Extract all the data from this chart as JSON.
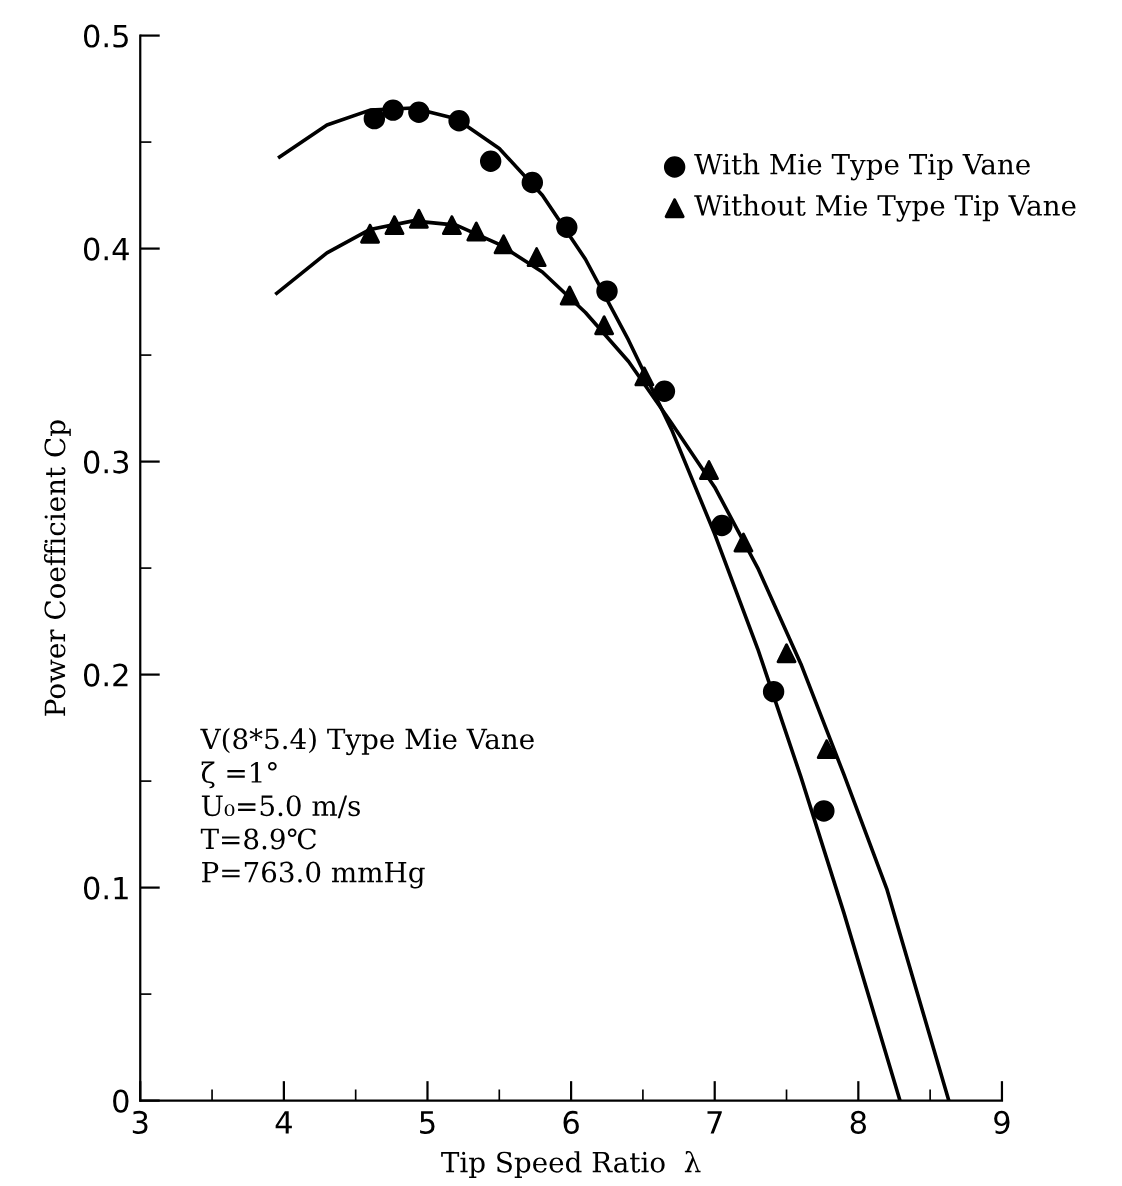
{
  "chart_data": {
    "type": "scatter",
    "xlabel": "Tip Speed Ratio  λ",
    "ylabel": "Power Coefficient Cp",
    "xlim": [
      3,
      9
    ],
    "xticks": [
      3,
      4,
      5,
      6,
      7,
      8,
      9
    ],
    "ylim": [
      0,
      0.5
    ],
    "yticks": [
      0,
      0.1,
      0.2,
      0.3,
      0.4,
      0.5
    ],
    "grid": false,
    "legend": "top right",
    "annotations": [
      "V(8*5.4) Type Mie Vane\nζ =1°\nU₀=5.0 m/s\nT=8.9℃\nP=763.0 mmHg"
    ],
    "series": [
      {
        "name": "With Mie Type Tip Vane",
        "marker": "circle",
        "color": "#000000",
        "x": [
          4.63,
          4.76,
          4.94,
          5.22,
          5.44,
          5.73,
          5.97,
          6.25,
          6.65,
          7.05,
          7.41,
          7.76
        ],
        "values": [
          0.461,
          0.465,
          0.464,
          0.46,
          0.441,
          0.431,
          0.41,
          0.38,
          0.333,
          0.27,
          0.192,
          0.136
        ]
      },
      {
        "name": "Without Mie Type Tip Vane",
        "marker": "triangle",
        "color": "#000000",
        "x": [
          4.6,
          4.77,
          4.94,
          5.17,
          5.34,
          5.53,
          5.76,
          5.99,
          6.23,
          6.51,
          6.96,
          7.2,
          7.5,
          7.78
        ],
        "values": [
          0.407,
          0.411,
          0.414,
          0.411,
          0.408,
          0.402,
          0.396,
          0.378,
          0.364,
          0.34,
          0.296,
          0.262,
          0.21,
          0.165
        ]
      },
      {
        "type": "line",
        "color": "#000000",
        "line_style": "solid",
        "x": [
          3.97,
          4.3,
          4.6,
          4.9,
          5.2,
          5.5,
          5.8,
          6.1,
          6.4,
          6.7,
          7.0,
          7.3,
          7.6,
          7.9,
          8.29
        ],
        "values": [
          0.443,
          0.458,
          0.465,
          0.466,
          0.461,
          0.447,
          0.425,
          0.395,
          0.357,
          0.315,
          0.266,
          0.212,
          0.152,
          0.088,
          0
        ]
      },
      {
        "type": "line",
        "color": "#000000",
        "line_style": "solid",
        "x": [
          3.95,
          4.3,
          4.6,
          4.9,
          5.2,
          5.5,
          5.8,
          6.1,
          6.4,
          6.7,
          7.0,
          7.3,
          7.6,
          7.9,
          8.2,
          8.63
        ],
        "values": [
          0.379,
          0.398,
          0.409,
          0.413,
          0.411,
          0.402,
          0.389,
          0.37,
          0.347,
          0.318,
          0.288,
          0.25,
          0.205,
          0.153,
          0.099,
          0
        ]
      }
    ]
  }
}
